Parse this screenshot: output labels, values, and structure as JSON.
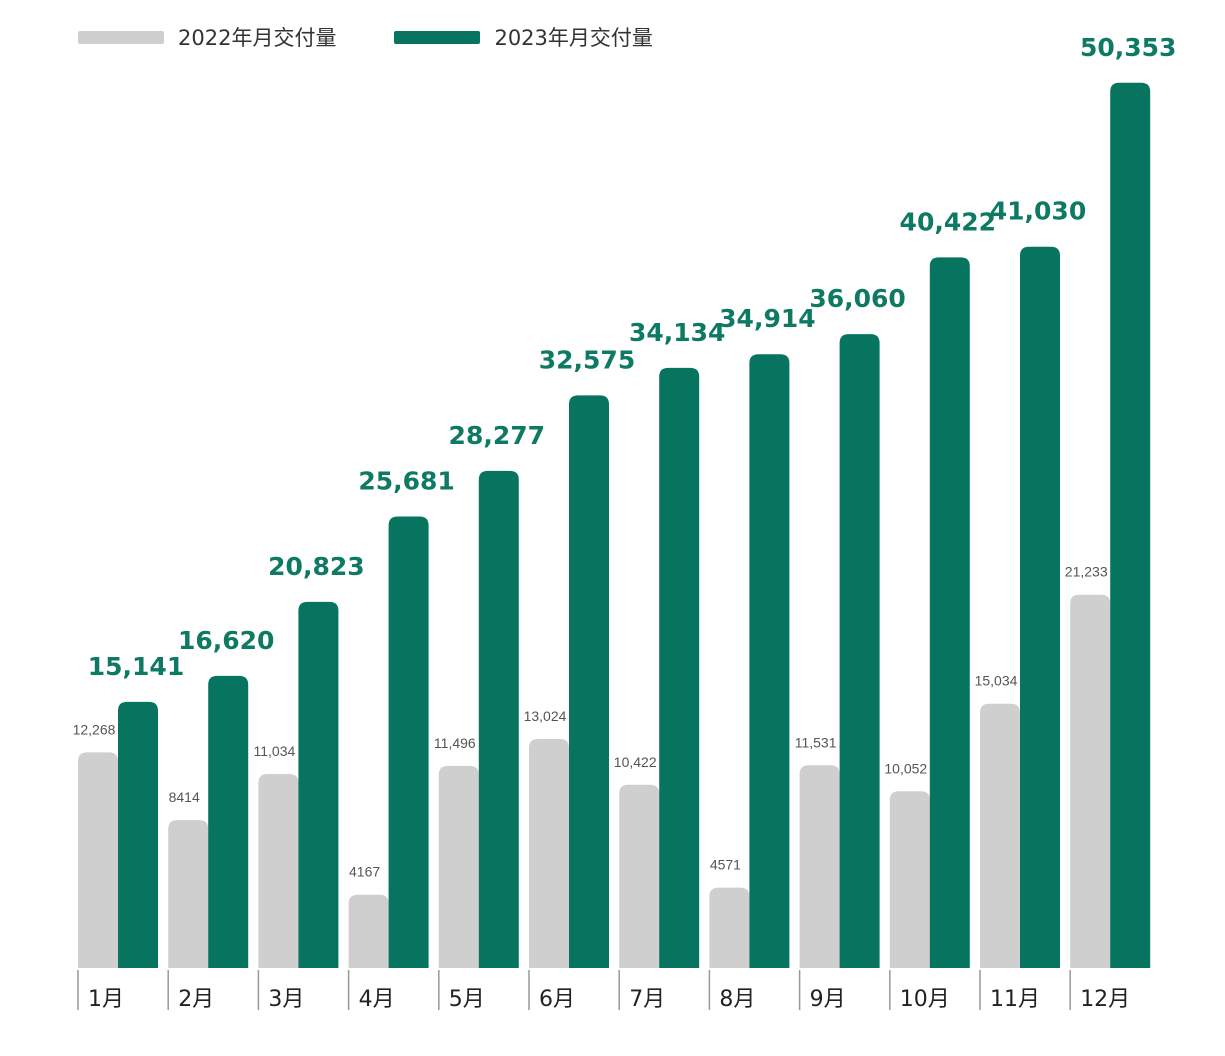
{
  "colors": {
    "series_2022": "#cfcfcf",
    "series_2023": "#07745f",
    "label_2023": "#0e7a63",
    "label_2022": "#555555",
    "month_label": "#222222",
    "divider": "#999999"
  },
  "legend": {
    "items": [
      {
        "label": "2022年月交付量",
        "color": "#cfcfcf"
      },
      {
        "label": "2023年月交付量",
        "color": "#07745f"
      }
    ],
    "placement": "top-left"
  },
  "chart_data": {
    "type": "bar",
    "categories": [
      "1月",
      "2月",
      "3月",
      "4月",
      "5月",
      "6月",
      "7月",
      "8月",
      "9月",
      "10月",
      "11月",
      "12月"
    ],
    "series": [
      {
        "name": "2022年月交付量",
        "values": [
          12268,
          8414,
          11034,
          4167,
          11496,
          13024,
          10422,
          4571,
          11531,
          10052,
          15034,
          21233
        ],
        "labels": [
          "12,268",
          "8414",
          "11,034",
          "4167",
          "11,496",
          "13,024",
          "10,422",
          "4571",
          "11,531",
          "10,052",
          "15,034",
          "21,233"
        ]
      },
      {
        "name": "2023年月交付量",
        "values": [
          15141,
          16620,
          20823,
          25681,
          28277,
          32575,
          34134,
          34914,
          36060,
          40422,
          41030,
          50353
        ],
        "labels": [
          "15,141",
          "16,620",
          "20,823",
          "25,681",
          "28,277",
          "32,575",
          "34,134",
          "34,914",
          "36,060",
          "40,422",
          "41,030",
          "50,353"
        ]
      }
    ],
    "ylim": [
      0,
      51000
    ],
    "grid": false,
    "data_labels": true
  }
}
